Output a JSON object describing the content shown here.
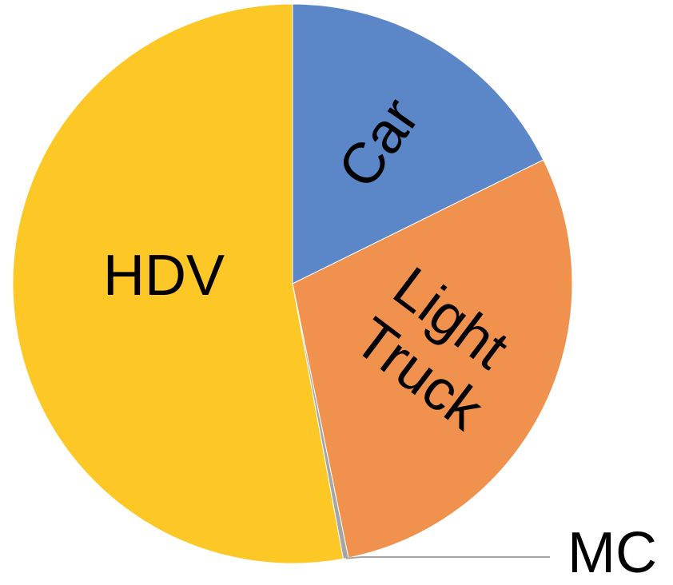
{
  "chart_data": {
    "type": "pie",
    "categories": [
      "Car",
      "Light Truck",
      "MC",
      "HDV"
    ],
    "values": [
      17.7,
      29.1,
      0.3,
      52.9
    ],
    "colors": [
      "#5b87c9",
      "#f0914e",
      "#a5a5a5",
      "#fdc726"
    ]
  }
}
